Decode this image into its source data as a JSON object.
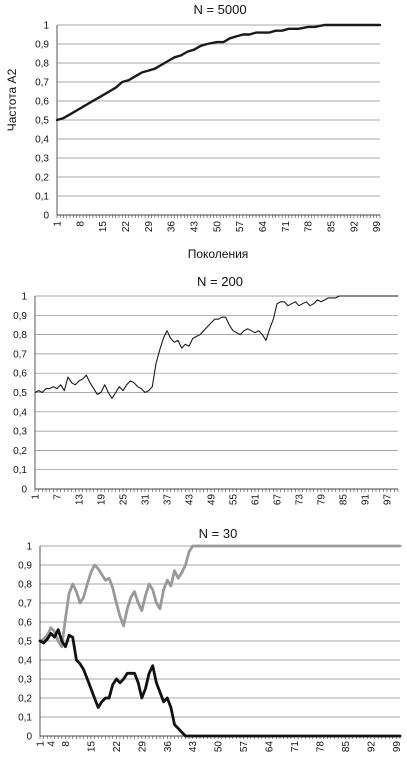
{
  "chart_data": [
    {
      "type": "line",
      "title": "N = 5000",
      "xlabel": "Поколения",
      "ylabel": "Частота A2",
      "ylim": [
        0,
        1
      ],
      "xlim": [
        1,
        100
      ],
      "yticks": [
        "0",
        "0,1",
        "0,2",
        "0,3",
        "0,4",
        "0,5",
        "0,6",
        "0,7",
        "0,8",
        "0,9",
        "1"
      ],
      "xticks": [
        1,
        8,
        15,
        22,
        29,
        36,
        43,
        50,
        57,
        64,
        71,
        78,
        85,
        92,
        99
      ],
      "grid": true,
      "series": [
        {
          "color": "#1a1a1a",
          "width": 2.4,
          "points": [
            [
              1,
              0.5
            ],
            [
              3,
              0.51
            ],
            [
              5,
              0.53
            ],
            [
              7,
              0.55
            ],
            [
              9,
              0.57
            ],
            [
              11,
              0.59
            ],
            [
              13,
              0.61
            ],
            [
              15,
              0.63
            ],
            [
              17,
              0.65
            ],
            [
              19,
              0.67
            ],
            [
              21,
              0.7
            ],
            [
              23,
              0.71
            ],
            [
              25,
              0.73
            ],
            [
              27,
              0.75
            ],
            [
              29,
              0.76
            ],
            [
              31,
              0.77
            ],
            [
              33,
              0.79
            ],
            [
              35,
              0.81
            ],
            [
              37,
              0.83
            ],
            [
              39,
              0.84
            ],
            [
              41,
              0.86
            ],
            [
              43,
              0.87
            ],
            [
              45,
              0.89
            ],
            [
              47,
              0.9
            ],
            [
              50,
              0.91
            ],
            [
              52,
              0.91
            ],
            [
              54,
              0.93
            ],
            [
              56,
              0.94
            ],
            [
              58,
              0.95
            ],
            [
              60,
              0.95
            ],
            [
              62,
              0.96
            ],
            [
              64,
              0.96
            ],
            [
              66,
              0.96
            ],
            [
              68,
              0.97
            ],
            [
              70,
              0.97
            ],
            [
              72,
              0.98
            ],
            [
              75,
              0.98
            ],
            [
              78,
              0.99
            ],
            [
              80,
              0.99
            ],
            [
              83,
              1
            ],
            [
              85,
              1
            ],
            [
              90,
              1
            ],
            [
              95,
              1
            ],
            [
              100,
              1
            ]
          ]
        }
      ]
    },
    {
      "type": "line",
      "title": "N = 200",
      "ylim": [
        0,
        1
      ],
      "xlim": [
        1,
        100
      ],
      "yticks": [
        "0",
        "0,1",
        "0,2",
        "0,3",
        "0,4",
        "0,5",
        "0,6",
        "0,7",
        "0,8",
        "0,9",
        "1"
      ],
      "xticks": [
        1,
        7,
        13,
        19,
        25,
        31,
        37,
        43,
        49,
        55,
        61,
        67,
        73,
        79,
        85,
        91,
        97
      ],
      "grid": true,
      "series": [
        {
          "color": "#1a1a1a",
          "width": 1.1,
          "points": [
            [
              1,
              0.5
            ],
            [
              2,
              0.51
            ],
            [
              3,
              0.5
            ],
            [
              4,
              0.52
            ],
            [
              5,
              0.52
            ],
            [
              6,
              0.53
            ],
            [
              7,
              0.52
            ],
            [
              8,
              0.54
            ],
            [
              9,
              0.51
            ],
            [
              10,
              0.58
            ],
            [
              11,
              0.55
            ],
            [
              12,
              0.54
            ],
            [
              13,
              0.56
            ],
            [
              14,
              0.57
            ],
            [
              15,
              0.59
            ],
            [
              16,
              0.55
            ],
            [
              17,
              0.52
            ],
            [
              18,
              0.49
            ],
            [
              19,
              0.5
            ],
            [
              20,
              0.54
            ],
            [
              21,
              0.5
            ],
            [
              22,
              0.47
            ],
            [
              23,
              0.5
            ],
            [
              24,
              0.53
            ],
            [
              25,
              0.51
            ],
            [
              26,
              0.54
            ],
            [
              27,
              0.56
            ],
            [
              28,
              0.55
            ],
            [
              29,
              0.53
            ],
            [
              30,
              0.52
            ],
            [
              31,
              0.5
            ],
            [
              32,
              0.51
            ],
            [
              33,
              0.53
            ],
            [
              34,
              0.65
            ],
            [
              35,
              0.72
            ],
            [
              36,
              0.78
            ],
            [
              37,
              0.82
            ],
            [
              38,
              0.78
            ],
            [
              39,
              0.76
            ],
            [
              40,
              0.77
            ],
            [
              41,
              0.73
            ],
            [
              42,
              0.75
            ],
            [
              43,
              0.74
            ],
            [
              44,
              0.78
            ],
            [
              45,
              0.79
            ],
            [
              46,
              0.8
            ],
            [
              47,
              0.82
            ],
            [
              48,
              0.84
            ],
            [
              49,
              0.86
            ],
            [
              50,
              0.88
            ],
            [
              51,
              0.88
            ],
            [
              52,
              0.89
            ],
            [
              53,
              0.89
            ],
            [
              54,
              0.85
            ],
            [
              55,
              0.82
            ],
            [
              56,
              0.81
            ],
            [
              57,
              0.8
            ],
            [
              58,
              0.82
            ],
            [
              59,
              0.83
            ],
            [
              60,
              0.82
            ],
            [
              61,
              0.81
            ],
            [
              62,
              0.82
            ],
            [
              63,
              0.8
            ],
            [
              64,
              0.77
            ],
            [
              65,
              0.83
            ],
            [
              66,
              0.88
            ],
            [
              67,
              0.96
            ],
            [
              68,
              0.97
            ],
            [
              69,
              0.97
            ],
            [
              70,
              0.95
            ],
            [
              71,
              0.96
            ],
            [
              72,
              0.97
            ],
            [
              73,
              0.95
            ],
            [
              74,
              0.96
            ],
            [
              75,
              0.97
            ],
            [
              76,
              0.95
            ],
            [
              77,
              0.96
            ],
            [
              78,
              0.98
            ],
            [
              79,
              0.97
            ],
            [
              80,
              0.98
            ],
            [
              81,
              0.99
            ],
            [
              82,
              0.99
            ],
            [
              83,
              0.99
            ],
            [
              84,
              1
            ],
            [
              90,
              1
            ],
            [
              95,
              1
            ],
            [
              100,
              1
            ]
          ]
        }
      ]
    },
    {
      "type": "line",
      "title": "N = 30",
      "ylim": [
        0,
        1
      ],
      "xlim": [
        1,
        100
      ],
      "yticks": [
        "0",
        "0,1",
        "0,2",
        "0,3",
        "0,4",
        "0,5",
        "0,6",
        "0,7",
        "0,8",
        "0,9",
        "1"
      ],
      "xticks": [
        1,
        4,
        8,
        15,
        22,
        29,
        36,
        43,
        50,
        57,
        64,
        71,
        78,
        85,
        92,
        99
      ],
      "grid": true,
      "series": [
        {
          "color": "#999999",
          "width": 2.8,
          "points": [
            [
              1,
              0.5
            ],
            [
              2,
              0.51
            ],
            [
              3,
              0.53
            ],
            [
              4,
              0.57
            ],
            [
              5,
              0.55
            ],
            [
              6,
              0.5
            ],
            [
              7,
              0.47
            ],
            [
              8,
              0.62
            ],
            [
              9,
              0.75
            ],
            [
              10,
              0.8
            ],
            [
              11,
              0.76
            ],
            [
              12,
              0.7
            ],
            [
              13,
              0.73
            ],
            [
              14,
              0.8
            ],
            [
              15,
              0.86
            ],
            [
              16,
              0.9
            ],
            [
              17,
              0.88
            ],
            [
              18,
              0.85
            ],
            [
              19,
              0.82
            ],
            [
              20,
              0.83
            ],
            [
              21,
              0.78
            ],
            [
              22,
              0.7
            ],
            [
              23,
              0.63
            ],
            [
              24,
              0.58
            ],
            [
              25,
              0.67
            ],
            [
              26,
              0.73
            ],
            [
              27,
              0.76
            ],
            [
              28,
              0.7
            ],
            [
              29,
              0.66
            ],
            [
              30,
              0.74
            ],
            [
              31,
              0.8
            ],
            [
              32,
              0.77
            ],
            [
              33,
              0.7
            ],
            [
              34,
              0.67
            ],
            [
              35,
              0.77
            ],
            [
              36,
              0.82
            ],
            [
              37,
              0.79
            ],
            [
              38,
              0.87
            ],
            [
              39,
              0.83
            ],
            [
              40,
              0.86
            ],
            [
              41,
              0.9
            ],
            [
              42,
              0.97
            ],
            [
              43,
              1
            ],
            [
              45,
              1
            ],
            [
              60,
              1
            ],
            [
              80,
              1
            ],
            [
              100,
              1
            ]
          ]
        },
        {
          "color": "#111111",
          "width": 2.8,
          "points": [
            [
              1,
              0.5
            ],
            [
              2,
              0.49
            ],
            [
              3,
              0.51
            ],
            [
              4,
              0.54
            ],
            [
              5,
              0.52
            ],
            [
              6,
              0.56
            ],
            [
              7,
              0.5
            ],
            [
              8,
              0.47
            ],
            [
              9,
              0.53
            ],
            [
              10,
              0.52
            ],
            [
              11,
              0.4
            ],
            [
              12,
              0.38
            ],
            [
              13,
              0.35
            ],
            [
              14,
              0.3
            ],
            [
              15,
              0.25
            ],
            [
              16,
              0.2
            ],
            [
              17,
              0.15
            ],
            [
              18,
              0.18
            ],
            [
              19,
              0.2
            ],
            [
              20,
              0.2
            ],
            [
              21,
              0.27
            ],
            [
              22,
              0.3
            ],
            [
              23,
              0.28
            ],
            [
              24,
              0.3
            ],
            [
              25,
              0.33
            ],
            [
              26,
              0.33
            ],
            [
              27,
              0.33
            ],
            [
              28,
              0.28
            ],
            [
              29,
              0.2
            ],
            [
              30,
              0.25
            ],
            [
              31,
              0.33
            ],
            [
              32,
              0.37
            ],
            [
              33,
              0.28
            ],
            [
              34,
              0.23
            ],
            [
              35,
              0.18
            ],
            [
              36,
              0.2
            ],
            [
              37,
              0.15
            ],
            [
              38,
              0.06
            ],
            [
              39,
              0.04
            ],
            [
              40,
              0.02
            ],
            [
              41,
              0
            ],
            [
              50,
              0
            ],
            [
              70,
              0
            ],
            [
              100,
              0
            ]
          ]
        }
      ]
    }
  ]
}
